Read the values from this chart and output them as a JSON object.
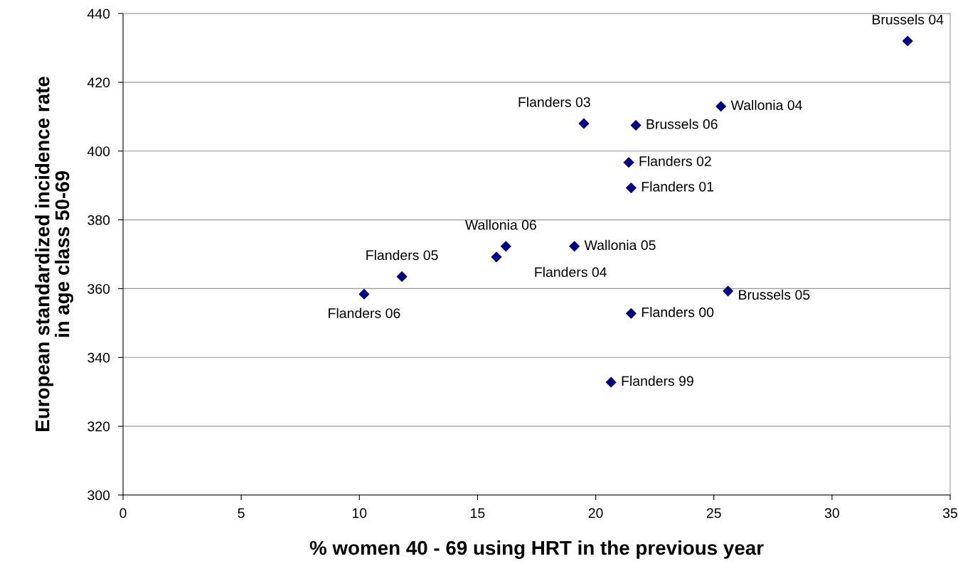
{
  "chart_data": {
    "type": "scatter",
    "xlabel": "% women 40 - 69 using HRT in the previous year",
    "ylabel": "European standardized incidence rate\nin age class 50-69",
    "x": [
      33.2,
      25.3,
      19.5,
      21.7,
      21.4,
      21.5,
      16.2,
      15.8,
      19.1,
      11.8,
      10.2,
      25.6,
      21.5,
      20.65
    ],
    "series": [
      {
        "color": "#000080",
        "values": [
          432,
          413,
          408,
          407.5,
          396.7,
          389.3,
          372.3,
          369.2,
          372.3,
          363.5,
          358.4,
          359.3,
          352.8,
          332.8
        ]
      }
    ],
    "annotations": [
      {
        "text": "Brussels 04",
        "x": 33.2,
        "y": 432
      },
      {
        "text": "Wallonia 04",
        "x": 25.3,
        "y": 413
      },
      {
        "text": "Flanders 03",
        "x": 19.5,
        "y": 408
      },
      {
        "text": "Brussels 06",
        "x": 21.7,
        "y": 407.5
      },
      {
        "text": "Flanders 02",
        "x": 21.4,
        "y": 396.7
      },
      {
        "text": "Flanders 01",
        "x": 21.5,
        "y": 389.3
      },
      {
        "text": "Wallonia 06",
        "x": 16.2,
        "y": 372.3
      },
      {
        "text": "Flanders 04",
        "x": 15.8,
        "y": 369.2
      },
      {
        "text": "Wallonia 05",
        "x": 19.1,
        "y": 372.3
      },
      {
        "text": "Flanders 05",
        "x": 11.8,
        "y": 363.5
      },
      {
        "text": "Flanders 06",
        "x": 10.2,
        "y": 358.4
      },
      {
        "text": "Brussels 05",
        "x": 25.6,
        "y": 359.3
      },
      {
        "text": "Flanders 00",
        "x": 21.5,
        "y": 352.8
      },
      {
        "text": "Flanders 99",
        "x": 20.65,
        "y": 332.8
      }
    ],
    "xlim": [
      0,
      35
    ],
    "xticks": [
      0,
      5,
      10,
      15,
      20,
      25,
      30,
      35
    ],
    "ylim": [
      300,
      440
    ],
    "yticks": [
      300,
      320,
      340,
      360,
      380,
      400,
      420,
      440
    ],
    "grid": "y",
    "marker": "diamond"
  }
}
